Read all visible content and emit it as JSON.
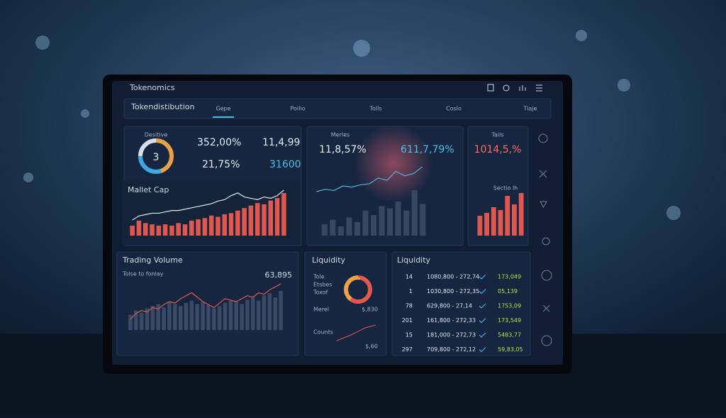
{
  "header": {
    "title": "Tokenomics"
  },
  "nav": {
    "title": "Tokendistibution",
    "tabs": [
      "Gepe",
      "Poilio",
      "Tolls",
      "Coslo",
      "Tiaje"
    ]
  },
  "summary": {
    "label": "Desitive",
    "donut_label": "3",
    "stats": [
      "352,00%",
      "11,4,99",
      "21,75%",
      "31600"
    ],
    "donut": {
      "values": [
        45,
        30,
        25
      ],
      "colors": [
        "#e9a14a",
        "#3fa6e0",
        "#d9dde6"
      ]
    }
  },
  "market_cap": {
    "title": "Mallet Cap",
    "color": "#e0574f",
    "values": [
      8,
      12,
      10,
      9,
      8,
      9,
      8,
      10,
      9,
      12,
      13,
      14,
      16,
      15,
      17,
      18,
      20,
      22,
      24,
      26,
      25,
      28,
      30,
      34
    ],
    "line": [
      10,
      13,
      14,
      15,
      15,
      16,
      17,
      17,
      18,
      19,
      20,
      21,
      22,
      24,
      25,
      28,
      30,
      27,
      26,
      25,
      27,
      26,
      28,
      32
    ]
  },
  "metrics": {
    "title": "Merles",
    "stats": [
      "11,8,57%",
      "611,7,79%"
    ],
    "color": "#3a4660",
    "values": [
      10,
      14,
      8,
      16,
      12,
      22,
      18,
      26,
      24,
      30,
      22,
      40,
      28
    ],
    "line": [
      18,
      20,
      19,
      23,
      22,
      24,
      25,
      30,
      28,
      36,
      32,
      34,
      40
    ]
  },
  "tails": {
    "title": "Tails",
    "stat": "1014,5,%",
    "note": "Sectio lh",
    "color": "#e0574f",
    "values": [
      14,
      16,
      20,
      18,
      28,
      22,
      30
    ]
  },
  "trading_volume": {
    "title": "Trading Volume",
    "subtitle": "Tolse to fonlay",
    "stat": "63,895",
    "color": "#3a4a66",
    "values": [
      14,
      18,
      16,
      20,
      22,
      24,
      21,
      26,
      24,
      22,
      25,
      27,
      24,
      26,
      23,
      20,
      22,
      25,
      27,
      26,
      24,
      28,
      30,
      27,
      32,
      34,
      30,
      36
    ],
    "line": [
      12,
      16,
      18,
      17,
      20,
      19,
      22,
      24,
      23,
      26,
      28,
      30,
      27,
      24,
      22,
      20,
      23,
      26,
      25,
      24,
      26,
      28,
      27,
      30,
      29,
      32,
      34,
      36
    ]
  },
  "liquidity": {
    "title": "Liquidity",
    "labels": [
      "Tole",
      "Etsbes",
      "Toxof"
    ],
    "rows": [
      [
        "Merel",
        "$,830"
      ],
      [
        "Counts",
        "$,60"
      ]
    ],
    "donut": {
      "values": [
        60,
        40
      ],
      "colors": [
        "#e0574f",
        "#e9a14a"
      ]
    }
  },
  "liquidity_table": {
    "title": "Liquidity",
    "rows": [
      [
        "14",
        "1080,800 - 272,74",
        "173,049"
      ],
      [
        "1",
        "1030,800 - 272,35",
        "05,139"
      ],
      [
        "78",
        "629,800 - 27,14",
        "1753,09"
      ],
      [
        "201",
        "161,800 - 272,33",
        "173,549"
      ],
      [
        "15",
        "181,000 - 272,73",
        "5483,77"
      ],
      [
        "297",
        "709,800 - 272,12",
        "59,83,05"
      ]
    ]
  }
}
